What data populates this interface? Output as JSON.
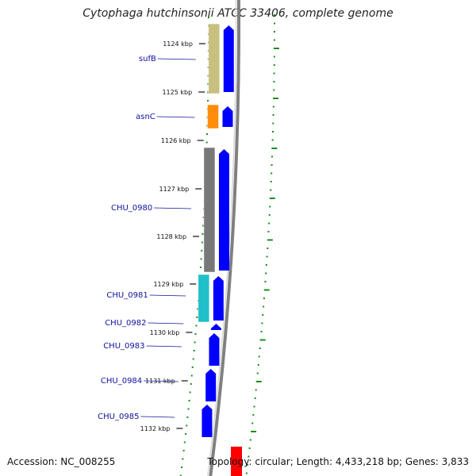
{
  "title": "Cytophaga hutchinsonii ATCC 33406, complete genome",
  "ticks": [
    "1124 kbp",
    "1125 kbp",
    "1126 kbp",
    "1127 kbp",
    "1128 kbp",
    "1129 kbp",
    "1130 kbp",
    "1131 kbp",
    "1132 kbp"
  ],
  "genes": [
    {
      "name": "sufB",
      "cog_color": "#c8c07e",
      "strand": "+"
    },
    {
      "name": "asnC",
      "cog_color": "#ff8c0a",
      "strand": "+"
    },
    {
      "name": "CHU_0980",
      "cog_color": "#787878",
      "strand": "+"
    },
    {
      "name": "CHU_0981",
      "cog_color": "#20c0c8",
      "strand": "+"
    },
    {
      "name": "CHU_0982",
      "cog_color": "",
      "strand": "+"
    },
    {
      "name": "CHU_0983",
      "cog_color": "",
      "strand": "+"
    },
    {
      "name": "CHU_0984",
      "cog_color": "",
      "strand": "+"
    },
    {
      "name": "CHU_0985",
      "cog_color": "",
      "strand": "+"
    }
  ],
  "colors": {
    "cds": "#0000ff",
    "backbone": "#808080",
    "tick": "#111111",
    "gc_skew": "#1a8c1a",
    "feature_red": "#ff0000"
  },
  "footer": {
    "accession": "Accession: NC_008255",
    "summary": "Topology: circular; Length: 4,433,218 bp; Genes: 3,833"
  }
}
